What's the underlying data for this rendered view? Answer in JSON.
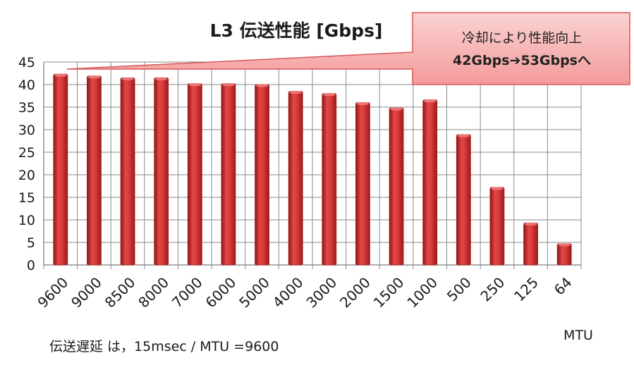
{
  "chart_data": {
    "type": "bar",
    "title": "L3 伝送性能 [Gbps]",
    "xlabel": "MTU",
    "ylabel": "",
    "ylim": [
      0,
      45
    ],
    "yticks": [
      0,
      5,
      10,
      15,
      20,
      25,
      30,
      35,
      40,
      45
    ],
    "grid": true,
    "legend": "none",
    "categories": [
      "9600",
      "9000",
      "8500",
      "8000",
      "7000",
      "6000",
      "5000",
      "4000",
      "3000",
      "2000",
      "1500",
      "1000",
      "500",
      "250",
      "125",
      "64"
    ],
    "values": [
      42.3,
      41.9,
      41.5,
      41.5,
      40.2,
      40.2,
      40.0,
      38.5,
      38.0,
      36.0,
      34.8,
      36.6,
      28.9,
      17.2,
      9.3,
      4.7
    ],
    "bar_color": "#d83a3a",
    "bar_edge_color": "#a41e1e"
  },
  "callout": {
    "line1": "冷却により性能向上",
    "line2": "42Gbps➔53Gbpsへ",
    "fill_color": "#f6b1b1",
    "border_color": "#d95757"
  },
  "footnote": "伝送遅延 は，15msec / MTU =9600"
}
